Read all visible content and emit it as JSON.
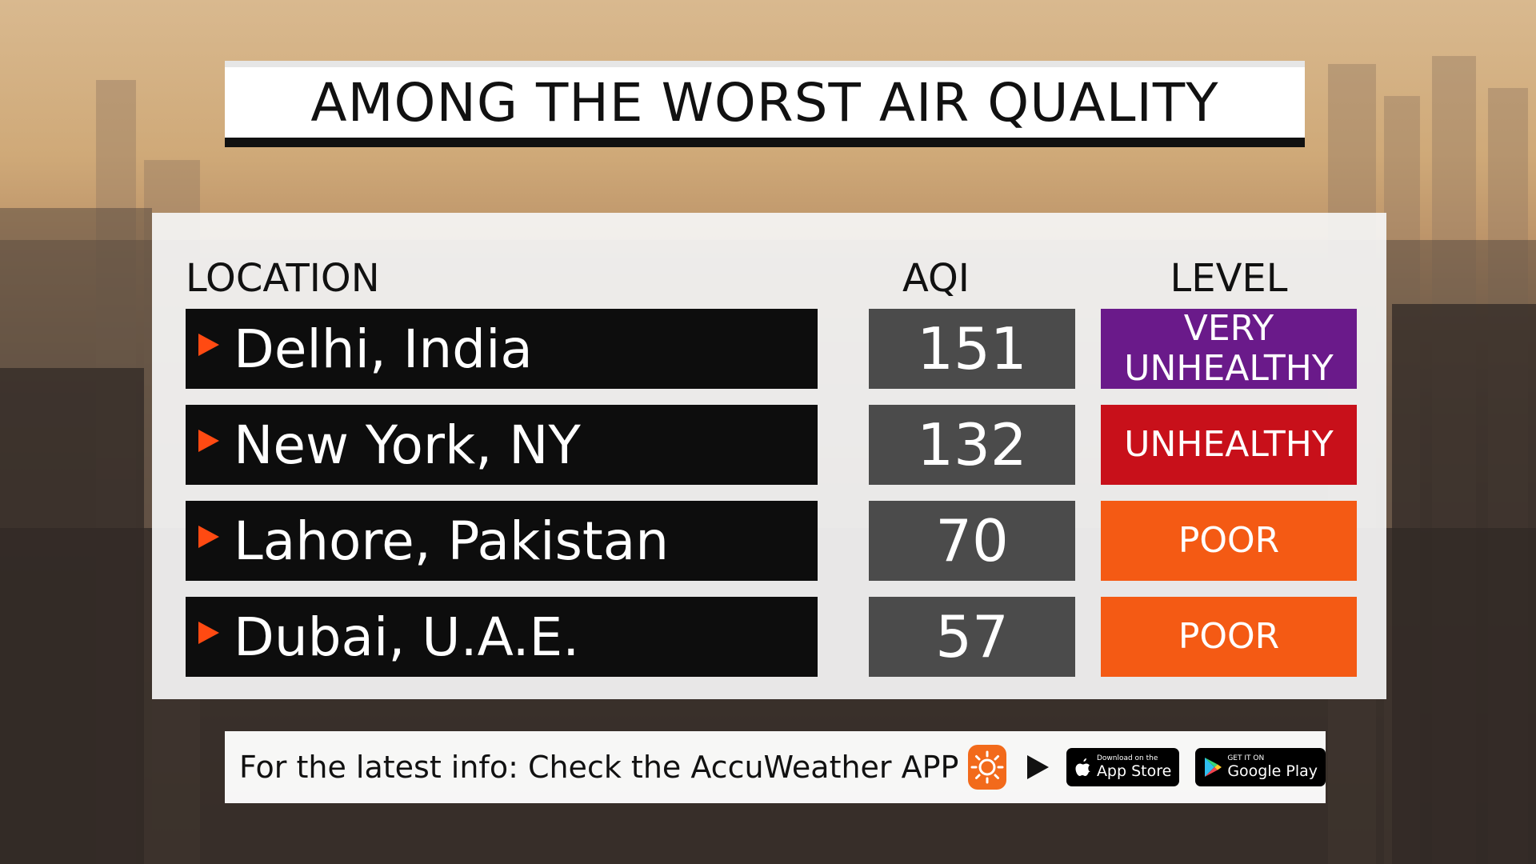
{
  "title": "AMONG THE WORST AIR QUALITY",
  "table": {
    "headers": {
      "location": "LOCATION",
      "aqi": "AQI",
      "level": "LEVEL"
    },
    "rows": [
      {
        "location": "Delhi, India",
        "aqi": "151",
        "level_line1": "VERY",
        "level_line2": "UNHEALTHY",
        "level_color": "#6a1a8a"
      },
      {
        "location": "New York, NY",
        "aqi": "132",
        "level_line1": "UNHEALTHY",
        "level_line2": "",
        "level_color": "#c8101a"
      },
      {
        "location": "Lahore, Pakistan",
        "aqi": "70",
        "level_line1": "POOR",
        "level_line2": "",
        "level_color": "#f45a14"
      },
      {
        "location": "Dubai, U.A.E.",
        "aqi": "57",
        "level_line1": "POOR",
        "level_line2": "",
        "level_color": "#f45a14"
      }
    ]
  },
  "footer": {
    "text": "For the latest info: Check the AccuWeather APP",
    "app_icon": "accuweather-sun-icon",
    "appstore_small": "Download on the",
    "appstore_big": "App Store",
    "googleplay_small": "GET IT ON",
    "googleplay_big": "Google Play"
  },
  "colors": {
    "row_bullet": "#ff4a12",
    "location_bg": "#0d0d0d",
    "aqi_bg": "#4b4b4b"
  }
}
